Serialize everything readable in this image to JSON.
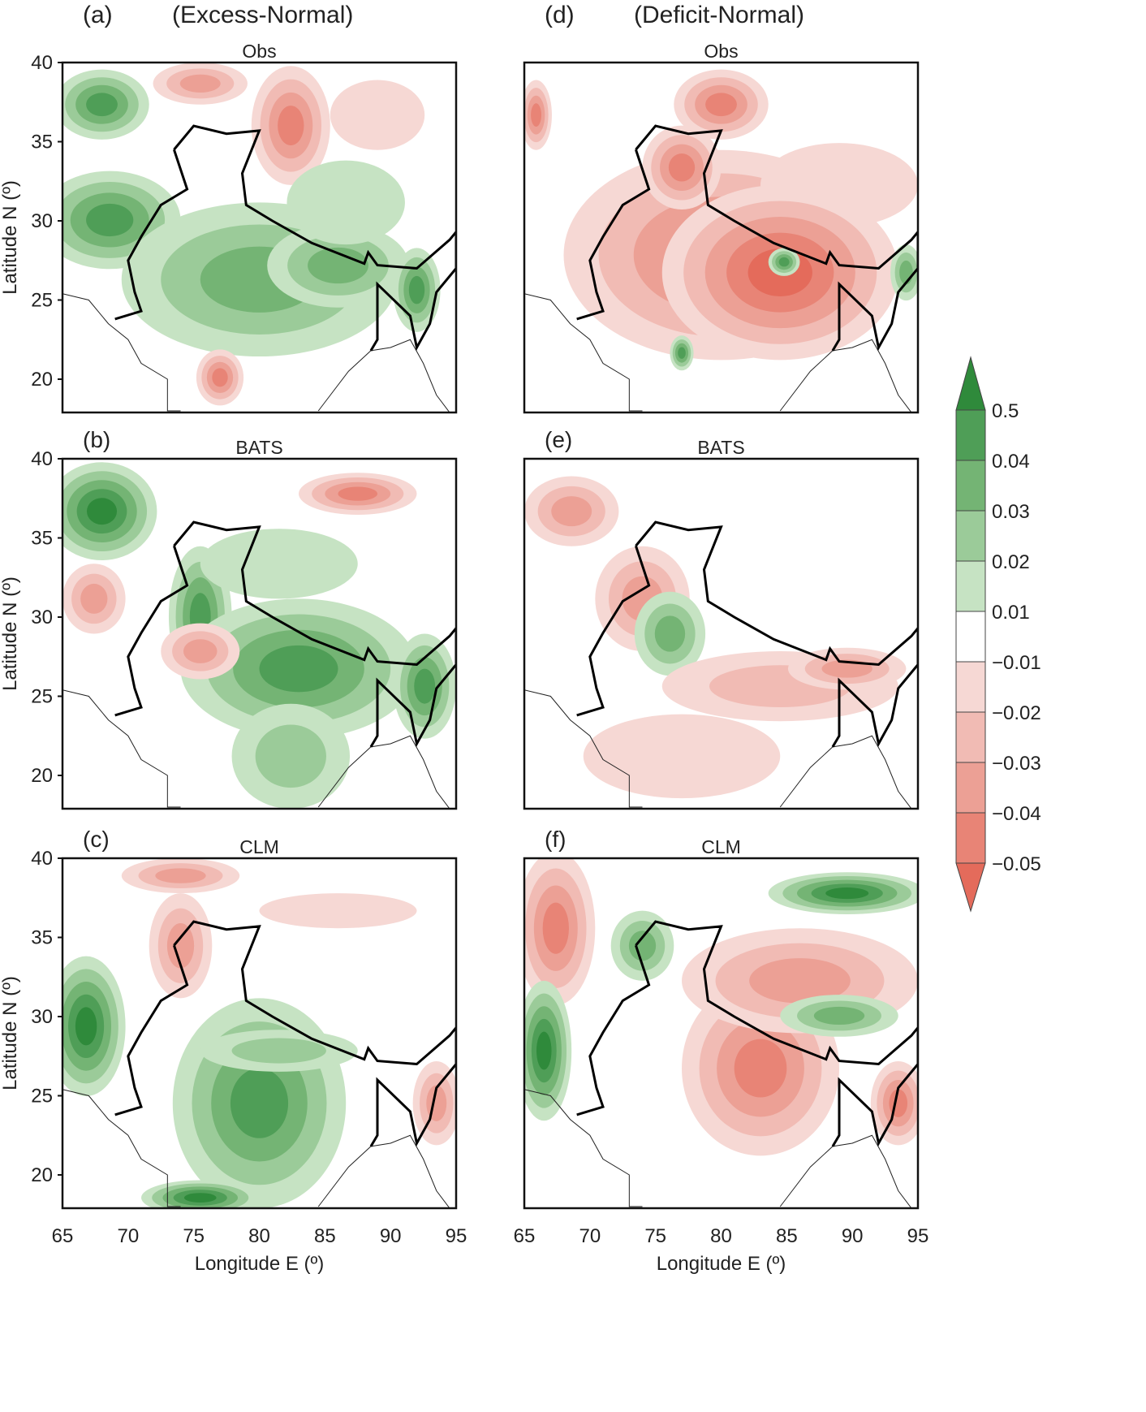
{
  "columns": [
    {
      "letter": "(a)",
      "title": "(Excess-Normal)"
    },
    {
      "letter": "(d)",
      "title": "(Deficit-Normal)"
    }
  ],
  "panels": [
    {
      "id": "a",
      "letter": "",
      "title": "Obs",
      "col": 0,
      "row": 0
    },
    {
      "id": "b",
      "letter": "(b)",
      "title": "BATS",
      "col": 0,
      "row": 1
    },
    {
      "id": "c",
      "letter": "(c)",
      "title": "CLM",
      "col": 0,
      "row": 2
    },
    {
      "id": "d",
      "letter": "",
      "title": "Obs",
      "col": 1,
      "row": 0
    },
    {
      "id": "e",
      "letter": "(e)",
      "title": "BATS",
      "col": 1,
      "row": 1
    },
    {
      "id": "f",
      "letter": "(f)",
      "title": "CLM",
      "col": 1,
      "row": 2
    }
  ],
  "axes": {
    "ylabel": "Latitude N (º)",
    "xlabel": "Longitude E (º)",
    "lat_ticks": [
      "40",
      "35",
      "30",
      "25",
      "20"
    ],
    "lon_ticks": [
      "65",
      "70",
      "75",
      "80",
      "85",
      "90",
      "95"
    ]
  },
  "colorbar": {
    "labels": [
      "0.5",
      "0.04",
      "0.03",
      "0.02",
      "0.01",
      "−0.01",
      "−0.02",
      "−0.03",
      "−0.04",
      "−0.05"
    ],
    "colors": [
      "#2f8a3b",
      "#4f9e57",
      "#74b474",
      "#9bcb99",
      "#c6e3c3",
      "#ffffff",
      "#f6d8d4",
      "#f1bbb4",
      "#eca095",
      "#e88476",
      "#e46b5b"
    ]
  }
}
